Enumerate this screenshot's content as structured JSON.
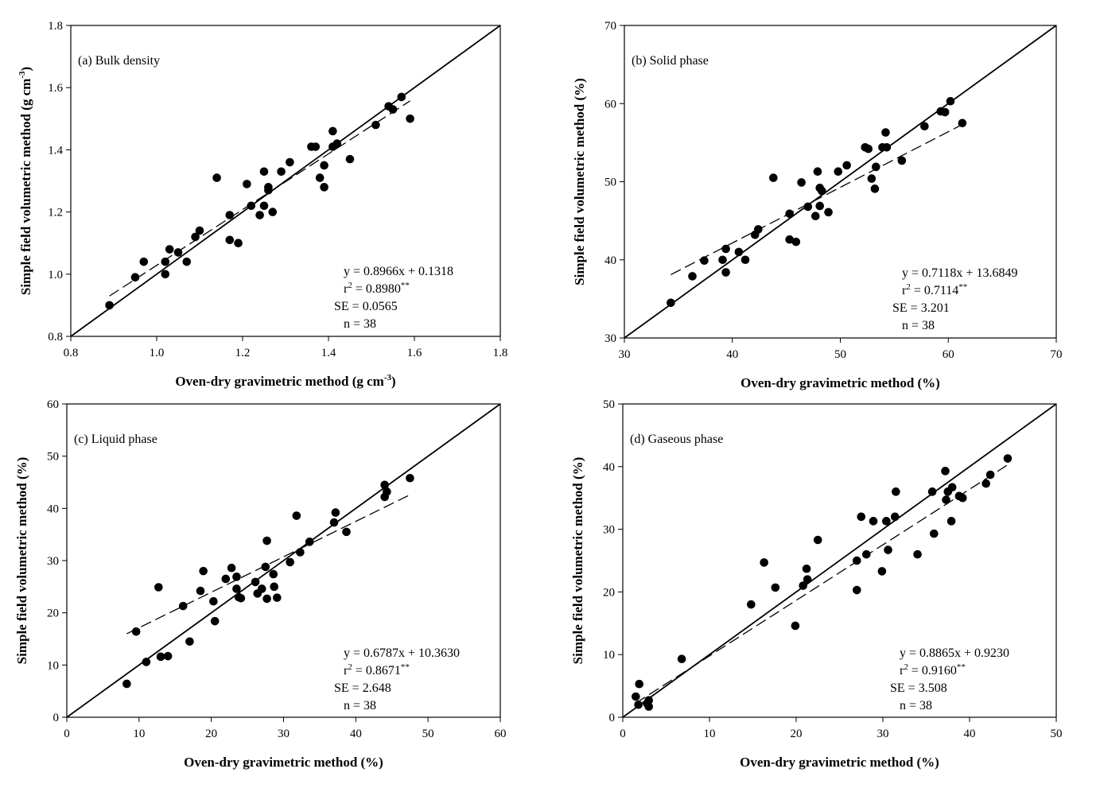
{
  "chart_data": [
    {
      "type": "scatter",
      "title": "(a) Bulk density",
      "xlabel": "Oven-dry gravimetric method (g cm",
      "xlabel_sup": "-3",
      "xlabel_end": ")",
      "ylabel": "Simple field volumetric method (g cm",
      "ylabel_sup": "-3",
      "ylabel_end": ")",
      "xlim": [
        0.8,
        1.8
      ],
      "ylim": [
        0.8,
        1.8
      ],
      "xticks": [
        0.8,
        1.0,
        1.2,
        1.4,
        1.6,
        1.8
      ],
      "yticks": [
        0.8,
        1.0,
        1.2,
        1.4,
        1.6,
        1.8
      ],
      "tick_decimals": 1,
      "fit": {
        "slope": 0.8966,
        "intercept": 0.1318,
        "x_range": [
          0.89,
          1.59
        ],
        "style": "dashed"
      },
      "one_to_one": true,
      "stats": {
        "equation": "y = 0.8966x + 0.1318",
        "r2_prefix": "r",
        "r2_sup": "2",
        "r2_value": " = 0.8980",
        "r2_sig": "**",
        "se": "SE = 0.0565",
        "n": "n = 38"
      },
      "points": [
        [
          0.89,
          0.9
        ],
        [
          0.95,
          0.99
        ],
        [
          0.97,
          1.04
        ],
        [
          1.02,
          1.04
        ],
        [
          1.02,
          1.0
        ],
        [
          1.03,
          1.08
        ],
        [
          1.05,
          1.07
        ],
        [
          1.07,
          1.04
        ],
        [
          1.09,
          1.12
        ],
        [
          1.1,
          1.14
        ],
        [
          1.14,
          1.31
        ],
        [
          1.17,
          1.11
        ],
        [
          1.17,
          1.19
        ],
        [
          1.19,
          1.1
        ],
        [
          1.21,
          1.29
        ],
        [
          1.22,
          1.22
        ],
        [
          1.24,
          1.19
        ],
        [
          1.25,
          1.33
        ],
        [
          1.25,
          1.22
        ],
        [
          1.26,
          1.28
        ],
        [
          1.26,
          1.27
        ],
        [
          1.27,
          1.2
        ],
        [
          1.29,
          1.33
        ],
        [
          1.31,
          1.36
        ],
        [
          1.36,
          1.41
        ],
        [
          1.37,
          1.41
        ],
        [
          1.38,
          1.31
        ],
        [
          1.39,
          1.28
        ],
        [
          1.39,
          1.35
        ],
        [
          1.41,
          1.46
        ],
        [
          1.41,
          1.41
        ],
        [
          1.42,
          1.42
        ],
        [
          1.45,
          1.37
        ],
        [
          1.51,
          1.48
        ],
        [
          1.54,
          1.54
        ],
        [
          1.55,
          1.53
        ],
        [
          1.57,
          1.57
        ],
        [
          1.59,
          1.5
        ]
      ]
    },
    {
      "type": "scatter",
      "title": "(b) Solid phase",
      "xlabel": "Oven-dry gravimetric method (%)",
      "ylabel": "Simple field volumetric method (%)",
      "xlim": [
        30,
        70
      ],
      "ylim": [
        30,
        70
      ],
      "xticks": [
        30,
        40,
        50,
        60,
        70
      ],
      "yticks": [
        30,
        40,
        50,
        60,
        70
      ],
      "tick_decimals": 0,
      "fit": {
        "slope": 0.7118,
        "intercept": 13.6849,
        "x_range": [
          34.3,
          61.3
        ],
        "style": "dashed"
      },
      "one_to_one": true,
      "stats": {
        "equation": "y = 0.7118x + 13.6849",
        "r2_prefix": "r",
        "r2_sup": "2",
        "r2_value": " = 0.7114",
        "r2_sig": "**",
        "se": "SE = 3.201",
        "n": "n = 38"
      },
      "points": [
        [
          34.3,
          34.5
        ],
        [
          36.3,
          37.9
        ],
        [
          37.4,
          39.9
        ],
        [
          39.1,
          40.0
        ],
        [
          39.4,
          38.4
        ],
        [
          39.4,
          41.4
        ],
        [
          40.6,
          41.0
        ],
        [
          41.2,
          40.0
        ],
        [
          42.1,
          43.2
        ],
        [
          42.4,
          43.9
        ],
        [
          43.8,
          50.5
        ],
        [
          45.3,
          45.9
        ],
        [
          45.3,
          42.6
        ],
        [
          45.9,
          42.3
        ],
        [
          46.4,
          49.9
        ],
        [
          47.0,
          46.8
        ],
        [
          47.7,
          45.6
        ],
        [
          47.9,
          51.3
        ],
        [
          48.1,
          46.9
        ],
        [
          48.1,
          49.2
        ],
        [
          48.3,
          48.8
        ],
        [
          48.9,
          46.1
        ],
        [
          49.8,
          51.3
        ],
        [
          50.6,
          52.1
        ],
        [
          52.3,
          54.4
        ],
        [
          52.6,
          54.2
        ],
        [
          52.9,
          50.4
        ],
        [
          53.2,
          49.1
        ],
        [
          53.3,
          51.9
        ],
        [
          53.9,
          54.4
        ],
        [
          54.2,
          56.3
        ],
        [
          54.3,
          54.4
        ],
        [
          55.7,
          52.7
        ],
        [
          57.8,
          57.1
        ],
        [
          59.3,
          59.0
        ],
        [
          59.7,
          58.9
        ],
        [
          60.2,
          60.3
        ],
        [
          61.3,
          57.5
        ]
      ]
    },
    {
      "type": "scatter",
      "title": "(c) Liquid phase",
      "xlabel": "Oven-dry gravimetric method (%)",
      "ylabel": "Simple field volumetric method (%)",
      "xlim": [
        0,
        60
      ],
      "ylim": [
        0,
        60
      ],
      "xticks": [
        0,
        10,
        20,
        30,
        40,
        50,
        60
      ],
      "yticks": [
        0,
        10,
        20,
        30,
        40,
        50,
        60
      ],
      "tick_decimals": 0,
      "fit": {
        "slope": 0.6787,
        "intercept": 10.363,
        "x_range": [
          8.3,
          47.5
        ],
        "style": "dashed"
      },
      "one_to_one": true,
      "stats": {
        "equation": "y = 0.6787x + 10.3630",
        "r2_prefix": "r",
        "r2_sup": "2",
        "r2_value": " = 0.8671",
        "r2_sig": "**",
        "se": "SE = 2.648",
        "n": "n = 38"
      },
      "points": [
        [
          8.3,
          6.4
        ],
        [
          9.6,
          16.4
        ],
        [
          11.0,
          10.6
        ],
        [
          12.7,
          24.9
        ],
        [
          13.0,
          11.6
        ],
        [
          14.0,
          11.7
        ],
        [
          16.1,
          21.3
        ],
        [
          17.0,
          14.5
        ],
        [
          18.5,
          24.2
        ],
        [
          18.9,
          28.0
        ],
        [
          20.3,
          22.2
        ],
        [
          20.5,
          18.4
        ],
        [
          22.0,
          26.5
        ],
        [
          22.8,
          28.6
        ],
        [
          23.5,
          26.9
        ],
        [
          23.5,
          24.6
        ],
        [
          23.8,
          23.0
        ],
        [
          24.1,
          22.8
        ],
        [
          26.1,
          25.9
        ],
        [
          26.4,
          23.7
        ],
        [
          27.0,
          24.6
        ],
        [
          27.5,
          28.8
        ],
        [
          27.7,
          22.7
        ],
        [
          27.7,
          33.8
        ],
        [
          28.6,
          27.4
        ],
        [
          28.7,
          25.0
        ],
        [
          29.1,
          22.9
        ],
        [
          30.9,
          29.7
        ],
        [
          31.8,
          38.6
        ],
        [
          32.3,
          31.6
        ],
        [
          33.6,
          33.6
        ],
        [
          37.0,
          37.3
        ],
        [
          37.2,
          39.2
        ],
        [
          38.7,
          35.5
        ],
        [
          44.0,
          42.2
        ],
        [
          44.0,
          44.5
        ],
        [
          44.3,
          43.2
        ],
        [
          47.5,
          45.8
        ]
      ]
    },
    {
      "type": "scatter",
      "title": "(d) Gaseous phase",
      "xlabel": "Oven-dry gravimetric method (%)",
      "ylabel": "Simple field volumetric method (%)",
      "xlim": [
        0,
        50
      ],
      "ylim": [
        0,
        50
      ],
      "xticks": [
        0,
        10,
        20,
        30,
        40,
        50
      ],
      "yticks": [
        0,
        10,
        20,
        30,
        40,
        50
      ],
      "tick_decimals": 0,
      "fit": {
        "slope": 0.8865,
        "intercept": 0.923,
        "x_range": [
          1.5,
          44.4
        ],
        "style": "dashed"
      },
      "one_to_one": true,
      "stats": {
        "equation": "y = 0.8865x + 0.9230",
        "r2_prefix": "r",
        "r2_sup": "2",
        "r2_value": " = 0.9160",
        "r2_sig": "**",
        "se": "SE = 3.508",
        "n": "n = 38"
      },
      "points": [
        [
          1.5,
          3.3
        ],
        [
          1.8,
          2.0
        ],
        [
          1.9,
          5.3
        ],
        [
          2.8,
          2.2
        ],
        [
          3.0,
          2.7
        ],
        [
          3.0,
          1.7
        ],
        [
          6.8,
          9.3
        ],
        [
          14.8,
          18.0
        ],
        [
          16.3,
          24.7
        ],
        [
          17.6,
          20.7
        ],
        [
          19.9,
          14.6
        ],
        [
          20.8,
          21.0
        ],
        [
          21.2,
          23.7
        ],
        [
          21.3,
          22.0
        ],
        [
          22.5,
          28.3
        ],
        [
          27.0,
          25.0
        ],
        [
          27.0,
          20.3
        ],
        [
          27.5,
          32.0
        ],
        [
          28.1,
          26.0
        ],
        [
          28.9,
          31.3
        ],
        [
          29.9,
          23.3
        ],
        [
          30.4,
          31.3
        ],
        [
          30.6,
          26.7
        ],
        [
          31.4,
          32.0
        ],
        [
          31.5,
          36.0
        ],
        [
          34.0,
          26.0
        ],
        [
          35.7,
          36.0
        ],
        [
          35.9,
          29.3
        ],
        [
          37.2,
          39.3
        ],
        [
          37.3,
          34.7
        ],
        [
          37.5,
          36.0
        ],
        [
          37.9,
          31.3
        ],
        [
          38.0,
          36.7
        ],
        [
          38.8,
          35.3
        ],
        [
          39.2,
          35.0
        ],
        [
          41.9,
          37.3
        ],
        [
          42.4,
          38.7
        ],
        [
          44.4,
          41.3
        ]
      ]
    }
  ]
}
